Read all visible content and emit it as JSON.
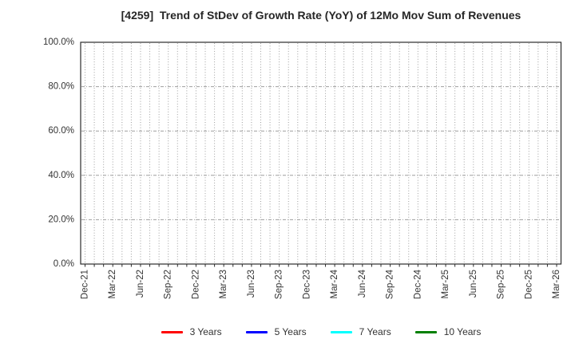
{
  "page": {
    "background": "#ffffff"
  },
  "chart_data": {
    "type": "line",
    "title": "[4259]  Trend of StDev of Growth Rate (YoY) of 12Mo Mov Sum of Revenues",
    "xlabel": "",
    "ylabel": "",
    "ylim": [
      0,
      100
    ],
    "y_major_step": 20,
    "y_tick_labels": [
      "0.0%",
      "20.0%",
      "40.0%",
      "60.0%",
      "80.0%",
      "100.0%"
    ],
    "x_tick_labels": [
      "Dec-21",
      "Mar-22",
      "Jun-22",
      "Sep-22",
      "Dec-22",
      "Mar-23",
      "Jun-23",
      "Sep-23",
      "Dec-23",
      "Mar-24",
      "Jun-24",
      "Sep-24",
      "Dec-24",
      "Mar-25",
      "Jun-25",
      "Sep-25",
      "Dec-25",
      "Mar-26"
    ],
    "x_minor_divisions_per_major": 3,
    "x_tick_label_rotation_deg": -90,
    "grid": true,
    "grid_vertical_style": "dotted-monthly",
    "grid_horizontal_style": "dash-dot-every-20pct",
    "legend_position": "bottom-center",
    "series": [
      {
        "name": "3 Years",
        "color": "#ff0000",
        "values": []
      },
      {
        "name": "5 Years",
        "color": "#0000ff",
        "values": []
      },
      {
        "name": "7 Years",
        "color": "#00ffff",
        "values": []
      },
      {
        "name": "10 Years",
        "color": "#008000",
        "values": []
      }
    ],
    "colors": {
      "grid": "#9e9e9e",
      "frame": "#2b2b2b",
      "tick_label": "#333333",
      "title": "#262626"
    },
    "note": "plot area is empty - no data points are drawn for any series"
  }
}
